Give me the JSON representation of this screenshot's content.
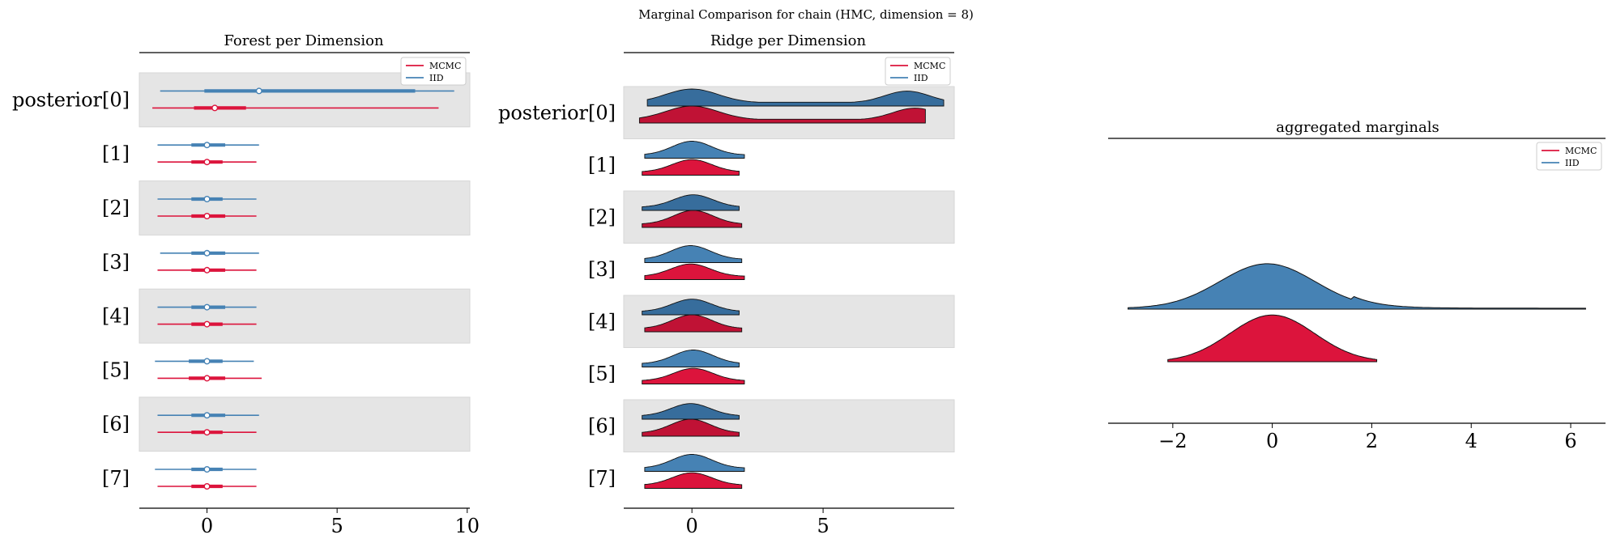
{
  "suptitle": "Marginal Comparison for chain (HMC, dimension = 8)",
  "colors": {
    "mcmc": "#dc143c",
    "iid": "#4682b4",
    "band": "#e5e5e5"
  },
  "chart_data": [
    {
      "type": "forest",
      "title": "Forest per Dimension",
      "xlim": [
        -2.6,
        10.1
      ],
      "xticks": [
        0,
        5,
        10
      ],
      "row_labels": [
        "posterior[0]",
        "[1]",
        "[2]",
        "[3]",
        "[4]",
        "[5]",
        "[6]",
        "[7]"
      ],
      "legend": [
        "MCMC",
        "IID"
      ],
      "legend_position": "upper right",
      "series": [
        {
          "name": "MCMC",
          "color": "#dc143c",
          "median": [
            0.3,
            0,
            0,
            0,
            0,
            0,
            0,
            0
          ],
          "hdi_50": [
            [
              -0.5,
              1.5
            ],
            [
              -0.6,
              0.6
            ],
            [
              -0.6,
              0.7
            ],
            [
              -0.6,
              0.7
            ],
            [
              -0.6,
              0.6
            ],
            [
              -0.7,
              0.7
            ],
            [
              -0.6,
              0.6
            ],
            [
              -0.6,
              0.6
            ]
          ],
          "hdi_94": [
            [
              -2.1,
              8.9
            ],
            [
              -1.9,
              1.9
            ],
            [
              -1.9,
              1.9
            ],
            [
              -1.9,
              1.9
            ],
            [
              -1.9,
              1.9
            ],
            [
              -1.9,
              2.1
            ],
            [
              -1.9,
              1.9
            ],
            [
              -1.9,
              1.9
            ]
          ]
        },
        {
          "name": "IID",
          "color": "#4682b4",
          "median": [
            2.0,
            0,
            0,
            0,
            0,
            0,
            0,
            0
          ],
          "hdi_50": [
            [
              -0.1,
              8.0
            ],
            [
              -0.6,
              0.7
            ],
            [
              -0.6,
              0.6
            ],
            [
              -0.6,
              0.7
            ],
            [
              -0.6,
              0.7
            ],
            [
              -0.7,
              0.6
            ],
            [
              -0.6,
              0.7
            ],
            [
              -0.6,
              0.6
            ]
          ],
          "hdi_94": [
            [
              -1.8,
              9.5
            ],
            [
              -1.9,
              2.0
            ],
            [
              -1.9,
              1.9
            ],
            [
              -1.8,
              2.0
            ],
            [
              -1.9,
              1.9
            ],
            [
              -2.0,
              1.8
            ],
            [
              -1.9,
              2.0
            ],
            [
              -2.0,
              1.9
            ]
          ]
        }
      ]
    },
    {
      "type": "ridge",
      "title": "Ridge per Dimension",
      "xlim": [
        -2.6,
        10.0
      ],
      "xticks": [
        0,
        5
      ],
      "row_labels": [
        "posterior[0]",
        "[1]",
        "[2]",
        "[3]",
        "[4]",
        "[5]",
        "[6]",
        "[7]"
      ],
      "legend": [
        "MCMC",
        "IID"
      ],
      "legend_position": "upper right",
      "series": [
        {
          "name": "IID",
          "color": "#4682b4",
          "range": [
            [
              -1.7,
              9.6
            ],
            [
              -1.8,
              2.0
            ],
            [
              -1.9,
              1.8
            ],
            [
              -1.8,
              1.9
            ],
            [
              -1.9,
              1.8
            ],
            [
              -1.9,
              1.8
            ],
            [
              -1.9,
              1.8
            ],
            [
              -1.8,
              2.0
            ]
          ]
        },
        {
          "name": "MCMC",
          "color": "#dc143c",
          "range": [
            [
              -2.0,
              8.9
            ],
            [
              -1.9,
              1.8
            ],
            [
              -1.9,
              1.9
            ],
            [
              -1.8,
              2.0
            ],
            [
              -1.8,
              1.9
            ],
            [
              -1.9,
              2.0
            ],
            [
              -1.9,
              1.8
            ],
            [
              -1.8,
              1.9
            ]
          ]
        }
      ]
    },
    {
      "type": "density",
      "title": "aggregated marginals",
      "xlim": [
        -3.3,
        6.7
      ],
      "xticks": [
        -2,
        0,
        2,
        4,
        6
      ],
      "xtick_labels": [
        "−2",
        "0",
        "2",
        "4",
        "6"
      ],
      "legend": [
        "MCMC",
        "IID"
      ],
      "legend_position": "upper right",
      "series": [
        {
          "name": "IID",
          "color": "#4682b4",
          "range": [
            -2.9,
            6.3
          ],
          "mode": 0,
          "peak_height": 1.0
        },
        {
          "name": "MCMC",
          "color": "#dc143c",
          "range": [
            -2.1,
            2.1
          ],
          "mode": 0,
          "peak_height": 1.05
        }
      ]
    }
  ]
}
